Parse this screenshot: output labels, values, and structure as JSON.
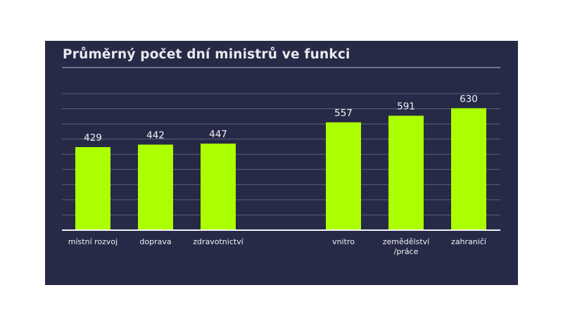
{
  "chart_data": {
    "type": "bar",
    "title": "Průměrný počet dní ministrů ve funkci",
    "categories": [
      "místní rozvoj",
      "doprava",
      "zdravotnictví",
      "",
      "vnitro",
      "zemědělství\n/práce",
      "zahraničí"
    ],
    "values": [
      429,
      442,
      447,
      null,
      557,
      591,
      630
    ],
    "xlabel": "",
    "ylabel": "",
    "ylim": [
      0,
      840
    ],
    "grid": true,
    "legend": "none",
    "colors": {
      "bar": "#abff00",
      "background": "#272a46",
      "grid": "#5c5f78",
      "text": "#f0f0f4"
    }
  }
}
